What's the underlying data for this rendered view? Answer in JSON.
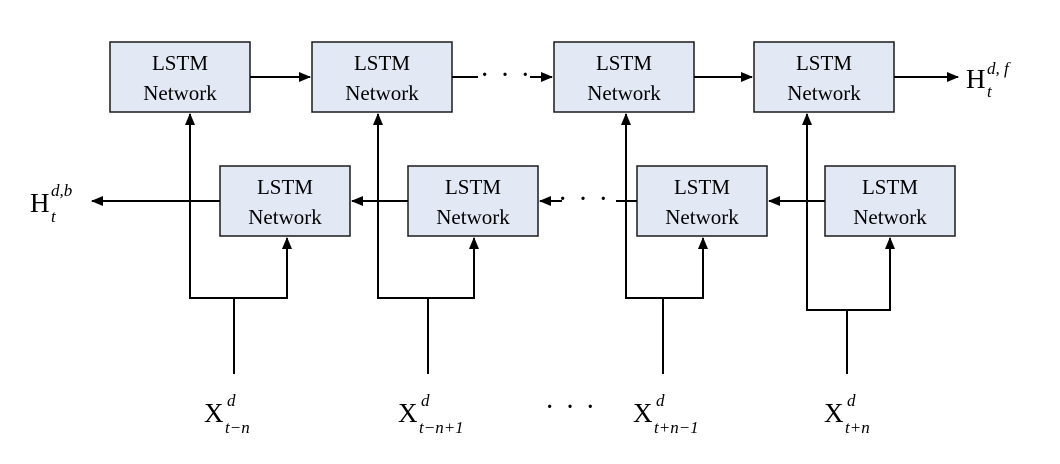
{
  "box_line1": "LSTM",
  "box_line2": "Network",
  "forward_boxes": [
    {
      "line1": "LSTM",
      "line2": "Network"
    },
    {
      "line1": "LSTM",
      "line2": "Network"
    },
    {
      "line1": "LSTM",
      "line2": "Network"
    },
    {
      "line1": "LSTM",
      "line2": "Network"
    }
  ],
  "backward_boxes": [
    {
      "line1": "LSTM",
      "line2": "Network"
    },
    {
      "line1": "LSTM",
      "line2": "Network"
    },
    {
      "line1": "LSTM",
      "line2": "Network"
    },
    {
      "line1": "LSTM",
      "line2": "Network"
    }
  ],
  "output_forward": {
    "base": "H",
    "sub": "t",
    "sup": "d, f"
  },
  "output_backward": {
    "base": "H",
    "sub": "t",
    "sup": "d,b"
  },
  "inputs": [
    {
      "base": "X",
      "sub": "t−n",
      "sup": "d"
    },
    {
      "base": "X",
      "sub": "t−n+1",
      "sup": "d"
    },
    {
      "base": "X",
      "sub": "t+n−1",
      "sup": "d"
    },
    {
      "base": "X",
      "sub": "t+n",
      "sup": "d"
    }
  ],
  "ellipsis": "· · ·",
  "colors": {
    "box_fill": "#e3e8f5",
    "line": "#000000"
  }
}
